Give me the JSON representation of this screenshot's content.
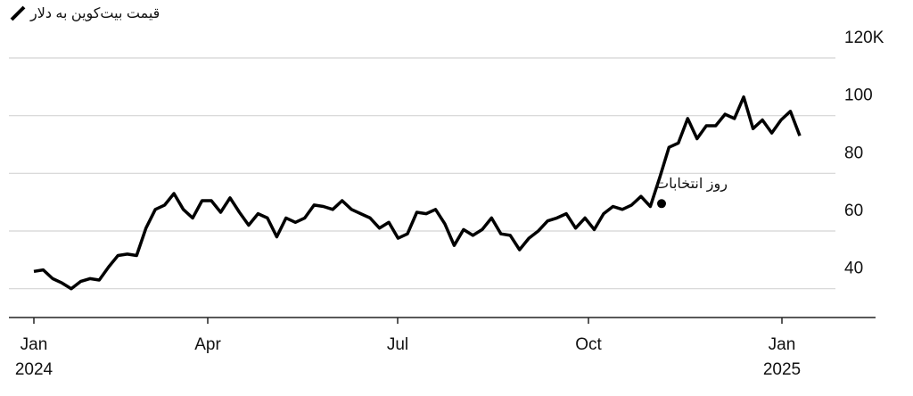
{
  "chart_data": {
    "type": "line",
    "title": "قیمت بیت‌کوین به دلار",
    "xtick_labels": [
      [
        "Jan",
        "2024"
      ],
      [
        "Apr"
      ],
      [
        "Jul"
      ],
      [
        "Oct"
      ],
      [
        "Jan",
        "2025"
      ]
    ],
    "series": [
      {
        "color": "#000000",
        "values": [
          46,
          46.5,
          43.5,
          42,
          40,
          42.5,
          43.5,
          43,
          47.5,
          51.5,
          52,
          51.5,
          61,
          67.5,
          69,
          73,
          67.5,
          64.5,
          70.5,
          70.5,
          66.5,
          71.5,
          66.5,
          62,
          66,
          64.5,
          58,
          64.5,
          63,
          64.5,
          69,
          68.5,
          67.5,
          70.5,
          67.5,
          66,
          64.5,
          61,
          63,
          57.5,
          59,
          66.5,
          66,
          67.5,
          62.5,
          55,
          60.5,
          58.5,
          60.5,
          64.5,
          59,
          58.5,
          53.5,
          57.5,
          60,
          63.5,
          64.5,
          66,
          61,
          64.5,
          60.5,
          66,
          68.5,
          67.5,
          69,
          72,
          68.5,
          78.5,
          89,
          90.5,
          99,
          92,
          96.5,
          96.5,
          100.5,
          99,
          106.5,
          95.5,
          98.5,
          94,
          98.5,
          101.5,
          93
        ]
      }
    ],
    "annotation": {
      "text": "روز انتخابات",
      "value": 69.5
    },
    "ylim": [
      30,
      120
    ],
    "yticks": [
      40,
      60,
      80,
      100,
      {
        "value": 120,
        "label": "120K"
      }
    ],
    "grid": true
  }
}
